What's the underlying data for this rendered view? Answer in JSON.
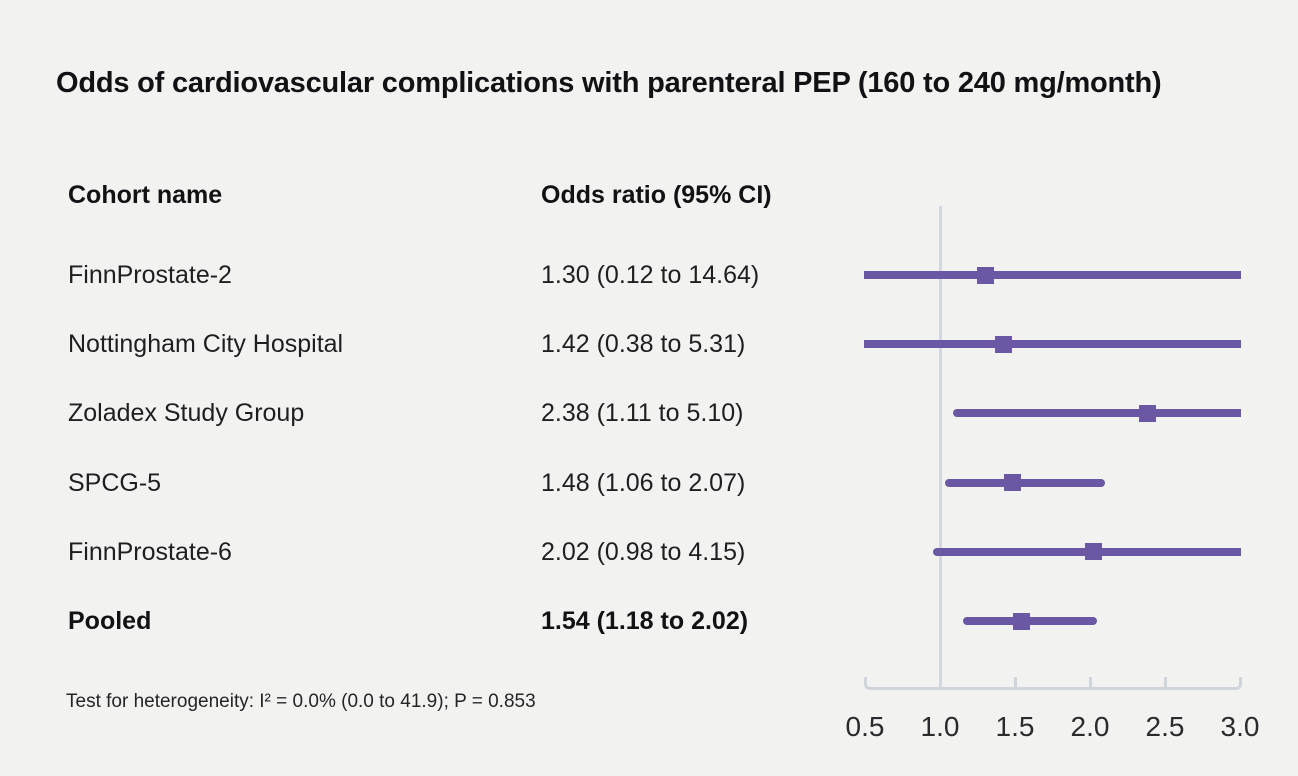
{
  "figure": {
    "title": "Odds of cardiovascular complications with parenteral PEP (160 to 240 mg/month)",
    "footnote": "Test for heterogeneity: I² = 0.0% (0.0 to 41.9); P = 0.853"
  },
  "table": {
    "columns": [
      "Cohort name",
      "Odds ratio (95% CI)"
    ]
  },
  "chart_data": {
    "type": "forest",
    "title": "Odds of cardiovascular complications with parenteral PEP (160 to 240 mg/month)",
    "xlabel": "Odds ratio (95% CI)",
    "xlim": [
      0.5,
      3.0
    ],
    "x_ticks": [
      "0.5",
      "1.0",
      "1.5",
      "2.0",
      "2.5",
      "3.0"
    ],
    "reference_line": 1.0,
    "grid": false,
    "legend_position": "none",
    "rows": [
      {
        "label": "FinnProstate-2",
        "or_text": "1.30 (0.12 to 14.64)",
        "estimate": 1.3,
        "ci_low": 0.12,
        "ci_high": 14.64,
        "bold": false
      },
      {
        "label": "Nottingham City Hospital",
        "or_text": "1.42 (0.38 to 5.31)",
        "estimate": 1.42,
        "ci_low": 0.38,
        "ci_high": 5.31,
        "bold": false
      },
      {
        "label": "Zoladex Study Group",
        "or_text": "2.38 (1.11 to 5.10)",
        "estimate": 2.38,
        "ci_low": 1.11,
        "ci_high": 5.1,
        "bold": false
      },
      {
        "label": "SPCG-5",
        "or_text": "1.48 (1.06 to 2.07)",
        "estimate": 1.48,
        "ci_low": 1.06,
        "ci_high": 2.07,
        "bold": false
      },
      {
        "label": "FinnProstate-6",
        "or_text": "2.02 (0.98 to 4.15)",
        "estimate": 2.02,
        "ci_low": 0.98,
        "ci_high": 4.15,
        "bold": false
      },
      {
        "label": "Pooled",
        "or_text": "1.54 (1.18 to 2.02)",
        "estimate": 1.54,
        "ci_low": 1.18,
        "ci_high": 2.02,
        "bold": true
      }
    ],
    "heterogeneity": "Test for heterogeneity: I² = 0.0% (0.0 to 41.9); P = 0.853"
  },
  "colors": {
    "background": "#f2f2f1",
    "text": "#1a1a1c",
    "marker": "#6a58a4",
    "reference_line": "#d3d7e0",
    "axis": "#d0d5dc"
  }
}
